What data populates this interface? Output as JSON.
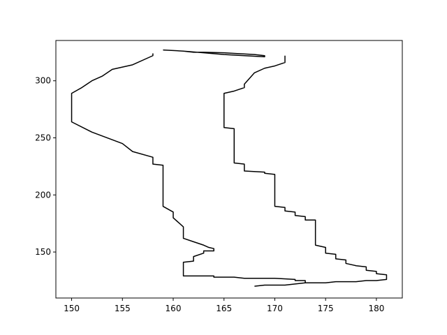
{
  "chart_data": {
    "type": "line",
    "title": "",
    "xlabel": "",
    "ylabel": "",
    "xlim": [
      148.45,
      182.55
    ],
    "ylim": [
      109.7,
      335.3
    ],
    "xticks": [
      150,
      155,
      160,
      165,
      170,
      175,
      180
    ],
    "yticks": [
      150,
      200,
      250,
      300
    ],
    "grid": false,
    "legend": "none",
    "line_color": "#000000",
    "series": [
      {
        "points": [
          [
            158,
            324
          ],
          [
            158,
            322
          ],
          [
            156,
            314
          ],
          [
            154,
            310
          ],
          [
            153,
            304
          ],
          [
            152,
            300
          ],
          [
            151,
            294
          ],
          [
            150,
            289
          ],
          [
            150,
            264
          ],
          [
            152,
            255
          ],
          [
            155,
            245
          ],
          [
            156,
            238
          ],
          [
            158,
            233
          ],
          [
            158,
            227
          ],
          [
            159,
            226
          ],
          [
            159,
            190
          ],
          [
            160,
            185
          ],
          [
            160,
            180
          ],
          [
            161,
            172
          ],
          [
            161,
            162
          ],
          [
            162,
            159
          ],
          [
            163,
            156
          ],
          [
            163.5,
            154
          ],
          [
            164,
            153
          ],
          [
            164,
            152
          ],
          [
            164,
            151
          ],
          [
            163,
            151
          ],
          [
            163,
            149
          ],
          [
            162,
            146
          ],
          [
            162,
            142
          ],
          [
            161,
            141
          ],
          [
            161,
            129
          ],
          [
            164,
            129
          ],
          [
            164,
            128
          ],
          [
            166,
            128
          ],
          [
            167,
            127
          ],
          [
            170,
            127
          ],
          [
            172,
            126
          ],
          [
            172,
            125
          ],
          [
            173,
            125
          ],
          [
            173,
            123
          ],
          [
            174,
            123
          ],
          [
            175,
            123
          ],
          [
            176,
            124
          ],
          [
            178,
            124
          ],
          [
            179,
            125
          ],
          [
            180,
            125
          ],
          [
            181,
            126
          ],
          [
            181,
            127
          ],
          [
            181,
            130
          ],
          [
            180,
            131
          ],
          [
            180,
            133
          ],
          [
            179,
            134
          ],
          [
            179,
            137
          ],
          [
            178,
            138
          ],
          [
            177,
            140
          ],
          [
            177,
            143
          ],
          [
            176,
            144
          ],
          [
            176,
            148
          ],
          [
            175,
            149
          ],
          [
            175,
            154
          ],
          [
            174,
            156
          ],
          [
            174,
            178
          ],
          [
            173,
            178
          ],
          [
            173,
            181
          ],
          [
            172,
            182
          ],
          [
            172,
            185
          ],
          [
            171,
            186
          ],
          [
            171,
            189
          ],
          [
            170,
            190
          ],
          [
            170,
            218
          ],
          [
            169,
            219
          ],
          [
            169,
            220
          ],
          [
            167,
            221
          ],
          [
            167,
            227
          ],
          [
            166,
            228
          ],
          [
            166,
            258
          ],
          [
            165,
            259
          ],
          [
            165,
            289
          ],
          [
            166,
            291
          ],
          [
            167,
            294
          ],
          [
            167,
            297
          ],
          [
            168,
            307
          ],
          [
            169,
            311
          ],
          [
            170,
            313
          ],
          [
            171,
            316
          ],
          [
            171,
            320
          ],
          [
            171,
            322
          ]
        ]
      },
      {
        "points": [
          [
            159,
            327
          ],
          [
            161,
            326
          ],
          [
            162,
            325
          ],
          [
            163,
            325
          ],
          [
            165,
            324.5
          ],
          [
            166,
            324
          ],
          [
            168,
            323
          ],
          [
            169,
            322
          ],
          [
            169,
            321
          ],
          [
            167,
            322
          ],
          [
            165,
            323
          ],
          [
            163,
            324.5
          ],
          [
            161,
            326
          ],
          [
            159,
            327
          ]
        ]
      },
      {
        "points": [
          [
            168,
            120
          ],
          [
            169,
            121
          ],
          [
            171,
            121
          ],
          [
            172,
            122
          ],
          [
            173,
            123
          ],
          [
            174,
            123
          ]
        ]
      }
    ]
  }
}
